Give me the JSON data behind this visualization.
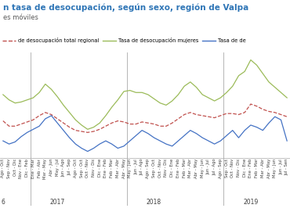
{
  "title_line1": "n tasa de desocupación, según sexo, región de Valpa",
  "title_line2": "es móviles",
  "legend": [
    {
      "label": "de desocupación total regional",
      "color": "#c0504d",
      "style": "dashed"
    },
    {
      "label": "Tasa de desocupación mujeres",
      "color": "#9bbb59",
      "style": "solid"
    },
    {
      "label": "Tasa de de",
      "color": "#4472c4",
      "style": "solid"
    }
  ],
  "x_labels": [
    "Ago - Oct",
    "Sep - Nov",
    "Oct - Dic",
    "Nov - Ene",
    "Dic - Feb",
    "Ene - Mar",
    "Feb - Abr",
    "Mar - May",
    "Abr - Jun",
    "May - Jul",
    "Jun - Ago",
    "Jul - Sep",
    "Ago - Oct",
    "Sep - Oct",
    "Oct - Nov",
    "Nov - Dic",
    "Dic - Ene",
    "Ene - Feb",
    "Feb - Mar",
    "Mar - Abr",
    "Abr - May",
    "May - Jun",
    "Jun - Jul",
    "Jul - Ago",
    "Ago - Sep",
    "Sep - Oct",
    "Oct - Nov",
    "Nov - Dic",
    "Dic - Ene",
    "Ene - Feb",
    "Feb - Mar",
    "Mar - Abr",
    "Abr - May",
    "May - Jun",
    "Jun - Jul",
    "Jul - Ago",
    "Ago - Sep",
    "Sep - Oct",
    "Oct - Nov",
    "Nov - Dic",
    "Dic - Ene",
    "Ene - Feb",
    "Feb - Mar",
    "Mar - Abr",
    "Abr - May",
    "May - Jun",
    "Jun - Jul",
    "Jul - Sen"
  ],
  "year_ticks": [
    {
      "label": "6",
      "x": 0
    },
    {
      "label": "2017",
      "x": 9
    },
    {
      "label": "2018",
      "x": 25
    },
    {
      "label": "2019",
      "x": 41
    }
  ],
  "year_lines": [
    4.5,
    20.5,
    36.5
  ],
  "red_data": [
    10.5,
    10.0,
    10.0,
    10.2,
    10.4,
    10.6,
    11.0,
    11.3,
    11.1,
    10.7,
    10.3,
    9.9,
    9.6,
    9.5,
    9.4,
    9.5,
    9.7,
    10.0,
    10.3,
    10.5,
    10.4,
    10.2,
    10.2,
    10.4,
    10.3,
    10.2,
    10.0,
    10.0,
    10.3,
    10.7,
    11.1,
    11.3,
    11.1,
    11.0,
    10.9,
    10.8,
    11.0,
    11.2,
    11.2,
    11.1,
    11.3,
    12.1,
    11.9,
    11.6,
    11.4,
    11.3,
    11.1,
    10.9
  ],
  "green_data": [
    13.0,
    12.5,
    12.2,
    12.3,
    12.5,
    12.7,
    13.2,
    14.0,
    13.5,
    12.8,
    12.0,
    11.3,
    10.6,
    10.1,
    9.7,
    9.9,
    10.3,
    11.0,
    11.8,
    12.5,
    13.3,
    13.4,
    13.2,
    13.2,
    13.0,
    12.6,
    12.2,
    12.0,
    12.4,
    13.0,
    13.8,
    14.2,
    13.7,
    13.0,
    12.7,
    12.4,
    12.7,
    13.2,
    13.8,
    14.8,
    15.2,
    16.3,
    15.8,
    15.0,
    14.2,
    13.7,
    13.2,
    12.7
  ],
  "blue_data": [
    8.6,
    8.3,
    8.5,
    9.0,
    9.4,
    9.7,
    10.0,
    10.7,
    11.0,
    10.3,
    9.6,
    8.9,
    8.3,
    7.9,
    7.6,
    7.9,
    8.3,
    8.6,
    8.3,
    7.9,
    8.1,
    8.6,
    9.1,
    9.6,
    9.3,
    8.9,
    8.6,
    8.3,
    8.1,
    8.6,
    9.1,
    9.6,
    9.3,
    8.9,
    8.6,
    8.3,
    8.6,
    9.1,
    9.6,
    8.9,
    9.6,
    10.1,
    9.9,
    9.6,
    10.3,
    10.9,
    10.6,
    8.6
  ],
  "background_color": "#ffffff",
  "grid_color": "#c8c8c8",
  "title_color": "#2e75b6",
  "subtitle_color": "#595959",
  "text_color": "#404040",
  "ylim": [
    7,
    17
  ],
  "title_fontsize": 7.5,
  "subtitle_fontsize": 6.0,
  "legend_fontsize": 4.8,
  "label_fontsize": 3.8
}
